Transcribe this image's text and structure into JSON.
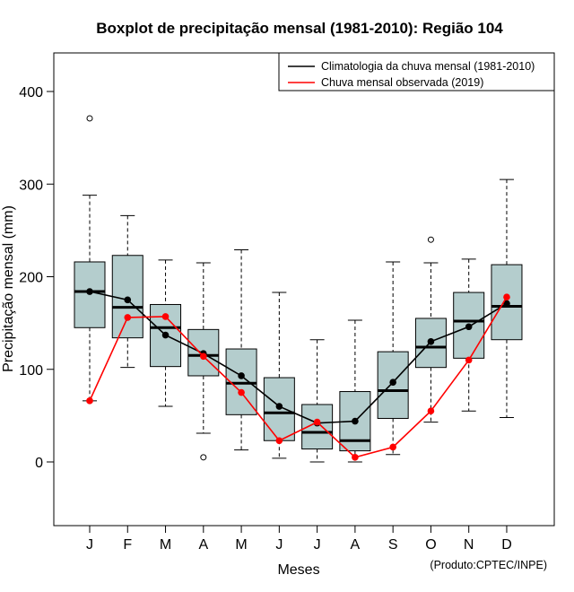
{
  "chart_data": {
    "type": "boxplot",
    "title": "Boxplot de precipitação mensal (1981-2010): Região 104",
    "xlabel": "Meses",
    "ylabel": "Precipitação mensal (mm)",
    "ylim": [
      -70,
      440
    ],
    "yticks": [
      0,
      100,
      200,
      300,
      400
    ],
    "categories": [
      "J",
      "F",
      "M",
      "A",
      "M",
      "J",
      "J",
      "A",
      "S",
      "O",
      "N",
      "D"
    ],
    "boxes": [
      {
        "min": 66,
        "q1": 145,
        "median": 184,
        "q3": 216,
        "max": 288,
        "outliers": [
          371
        ]
      },
      {
        "min": 102,
        "q1": 134,
        "median": 167,
        "q3": 223,
        "max": 266,
        "outliers": []
      },
      {
        "min": 60,
        "q1": 103,
        "median": 145,
        "q3": 170,
        "max": 218,
        "outliers": []
      },
      {
        "min": 31,
        "q1": 93,
        "median": 115,
        "q3": 143,
        "max": 215,
        "outliers": [
          5
        ]
      },
      {
        "min": 13,
        "q1": 51,
        "median": 85,
        "q3": 122,
        "max": 229,
        "outliers": []
      },
      {
        "min": 4,
        "q1": 23,
        "median": 53,
        "q3": 91,
        "max": 183,
        "outliers": []
      },
      {
        "min": 0,
        "q1": 14,
        "median": 32,
        "q3": 62,
        "max": 132,
        "outliers": []
      },
      {
        "min": 0,
        "q1": 12,
        "median": 23,
        "q3": 76,
        "max": 153,
        "outliers": []
      },
      {
        "min": 8,
        "q1": 47,
        "median": 77,
        "q3": 119,
        "max": 216,
        "outliers": []
      },
      {
        "min": 43,
        "q1": 102,
        "median": 124,
        "q3": 155,
        "max": 215,
        "outliers": [
          240
        ]
      },
      {
        "min": 55,
        "q1": 112,
        "median": 152,
        "q3": 183,
        "max": 219,
        "outliers": []
      },
      {
        "min": 48,
        "q1": 132,
        "median": 168,
        "q3": 213,
        "max": 305,
        "outliers": []
      }
    ],
    "series": [
      {
        "name": "Climatologia da chuva mensal (1981-2010)",
        "color": "#000000",
        "values": [
          184,
          175,
          137,
          117,
          93,
          60,
          42,
          44,
          86,
          130,
          146,
          171
        ]
      },
      {
        "name": "Chuva mensal observada (2019)",
        "color": "#ff0000",
        "values": [
          66,
          156,
          157,
          114,
          75,
          23,
          43,
          5,
          16,
          55,
          110,
          178
        ]
      }
    ],
    "legend_position": "top-right",
    "box_fill": "#b4cdcd",
    "credit": "(Produto:CPTEC/INPE)"
  }
}
